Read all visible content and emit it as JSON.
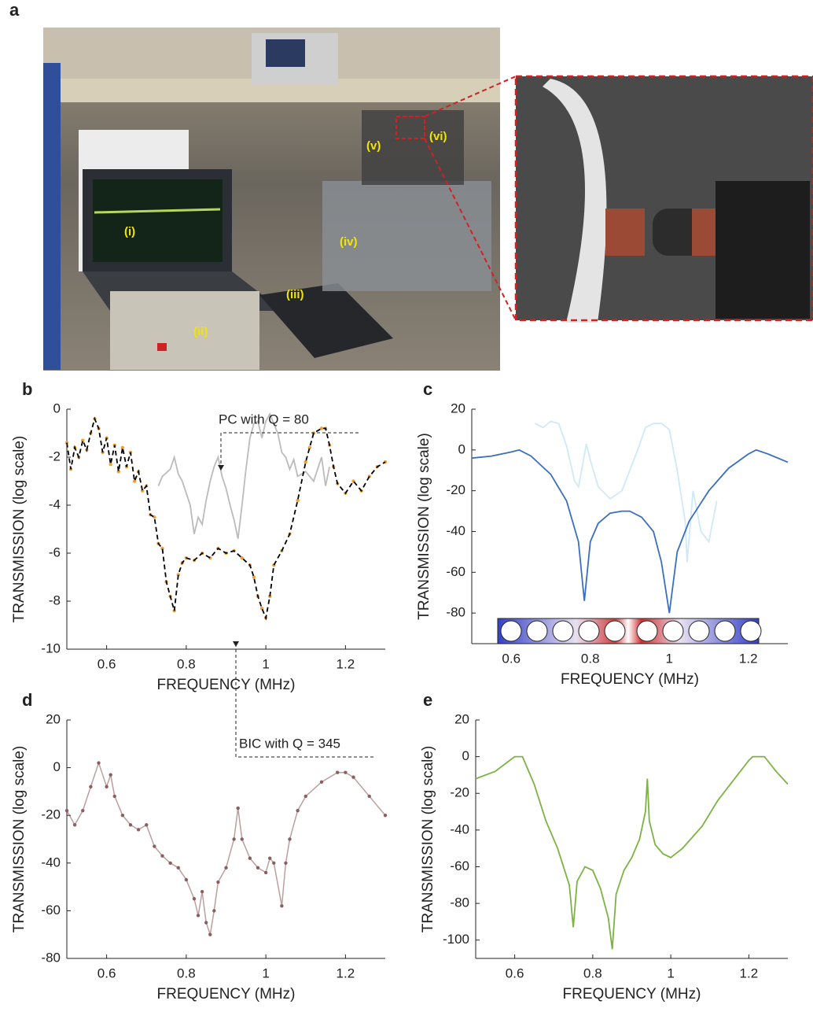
{
  "figure": {
    "panel_labels": [
      "a",
      "b",
      "c",
      "d",
      "e"
    ],
    "photo_labels": [
      "(i)",
      "(ii)",
      "(iii)",
      "(iv)",
      "(v)",
      "(vi)"
    ]
  },
  "chart_data": [
    {
      "type": "line",
      "xlabel": "FREQUENCY (MHz)",
      "ylabel": "TRANSMISSION (log scale)",
      "annotation": "PC with Q = 80",
      "xlim": [
        0.5,
        1.3
      ],
      "xticks": [
        0.6,
        0.8,
        1,
        1.2
      ],
      "ylim": [
        -10,
        0
      ],
      "yticks": [
        -10,
        -8,
        -6,
        -4,
        -2,
        0
      ],
      "series": [
        {
          "color": "#bbbbbb",
          "x": [
            0.73,
            0.74,
            0.76,
            0.77,
            0.78,
            0.79,
            0.8,
            0.81,
            0.82,
            0.83,
            0.84,
            0.85,
            0.86,
            0.87,
            0.88,
            0.89,
            0.9,
            0.91,
            0.92,
            0.93,
            0.94,
            0.95,
            0.96,
            0.97,
            0.98,
            0.99,
            1.0,
            1.01,
            1.03,
            1.04,
            1.05,
            1.06,
            1.07,
            1.08,
            1.1,
            1.12,
            1.14,
            1.15,
            1.16
          ],
          "values": [
            -3.2,
            -2.8,
            -2.5,
            -2.0,
            -2.7,
            -3.0,
            -3.5,
            -4.0,
            -5.2,
            -4.5,
            -4.8,
            -3.8,
            -3.0,
            -2.4,
            -2.0,
            -2.8,
            -3.3,
            -4.0,
            -4.6,
            -5.4,
            -4.0,
            -2.5,
            -1.2,
            -0.6,
            -0.5,
            -1.2,
            -0.5,
            -0.2,
            -1.0,
            -1.8,
            -2.0,
            -2.5,
            -2.1,
            -2.8,
            -2.6,
            -3.0,
            -2.0,
            -3.2,
            -2.4
          ]
        },
        {
          "color": "#f0a030",
          "line_color": "#000000",
          "dashed": true,
          "markers": true,
          "x": [
            0.5,
            0.51,
            0.52,
            0.53,
            0.54,
            0.55,
            0.56,
            0.57,
            0.58,
            0.59,
            0.6,
            0.61,
            0.62,
            0.63,
            0.64,
            0.65,
            0.66,
            0.67,
            0.68,
            0.69,
            0.7,
            0.71,
            0.72,
            0.73,
            0.74,
            0.75,
            0.76,
            0.77,
            0.78,
            0.79,
            0.8,
            0.82,
            0.84,
            0.86,
            0.88,
            0.9,
            0.92,
            0.94,
            0.96,
            0.97,
            0.98,
            0.99,
            1.0,
            1.01,
            1.02,
            1.04,
            1.06,
            1.08,
            1.1,
            1.11,
            1.12,
            1.14,
            1.15,
            1.16,
            1.17,
            1.18,
            1.2,
            1.22,
            1.24,
            1.26,
            1.28,
            1.3
          ],
          "values": [
            -1.4,
            -2.5,
            -1.6,
            -2.0,
            -1.3,
            -1.7,
            -1.0,
            -0.4,
            -0.8,
            -1.8,
            -1.2,
            -2.3,
            -1.5,
            -2.6,
            -1.6,
            -2.4,
            -1.8,
            -3.0,
            -2.6,
            -3.4,
            -3.2,
            -4.4,
            -4.5,
            -5.6,
            -5.8,
            -7.2,
            -7.8,
            -8.4,
            -6.9,
            -6.4,
            -6.2,
            -6.3,
            -6.0,
            -6.2,
            -5.8,
            -6.0,
            -5.9,
            -6.2,
            -6.5,
            -7.0,
            -7.8,
            -8.3,
            -8.7,
            -7.8,
            -6.5,
            -5.9,
            -5.2,
            -3.8,
            -2.2,
            -1.6,
            -1.0,
            -0.8,
            -0.8,
            -1.5,
            -2.4,
            -3.1,
            -3.5,
            -3.0,
            -3.4,
            -2.8,
            -2.4,
            -2.2
          ]
        }
      ]
    },
    {
      "type": "line",
      "xlabel": "FREQUENCY (MHz)",
      "ylabel": "TRANSMISSION (log scale)",
      "xlim": [
        0.5,
        1.3
      ],
      "xticks": [
        0.6,
        0.8,
        1,
        1.2
      ],
      "ylim": [
        -95,
        20
      ],
      "yticks": [
        -80,
        -60,
        -40,
        -20,
        0,
        20
      ],
      "series": [
        {
          "color": "#cfe9f7",
          "x": [
            0.66,
            0.68,
            0.7,
            0.72,
            0.74,
            0.76,
            0.77,
            0.78,
            0.79,
            0.8,
            0.82,
            0.85,
            0.88,
            0.9,
            0.92,
            0.94,
            0.96,
            0.98,
            1.0,
            1.02,
            1.04,
            1.045,
            1.06,
            1.08,
            1.1,
            1.12
          ],
          "values": [
            13,
            11,
            14,
            13,
            2,
            -15,
            -18,
            -8,
            3,
            -5,
            -18,
            -24,
            -20,
            -10,
            0,
            11,
            13,
            13,
            10,
            -10,
            -35,
            -55,
            -20,
            -40,
            -45,
            -25
          ]
        },
        {
          "color": "#3a6fbf",
          "x": [
            0.5,
            0.55,
            0.6,
            0.62,
            0.65,
            0.7,
            0.74,
            0.77,
            0.785,
            0.8,
            0.82,
            0.85,
            0.88,
            0.9,
            0.93,
            0.96,
            0.98,
            1.0,
            1.02,
            1.05,
            1.1,
            1.15,
            1.2,
            1.22,
            1.25,
            1.3
          ],
          "values": [
            -4,
            -3,
            -1,
            0,
            -3,
            -12,
            -25,
            -45,
            -74,
            -45,
            -36,
            -31,
            -30,
            -30,
            -33,
            -40,
            -55,
            -80,
            -50,
            -35,
            -20,
            -9,
            -2,
            0,
            -2,
            -6
          ]
        }
      ]
    },
    {
      "type": "line",
      "xlabel": "FREQUENCY (MHz)",
      "ylabel": "TRANSMISSION (log scale)",
      "annotation": "BIC with Q = 345",
      "xlim": [
        0.5,
        1.3
      ],
      "xticks": [
        0.6,
        0.8,
        1,
        1.2
      ],
      "ylim": [
        -80,
        20
      ],
      "yticks": [
        -80,
        -60,
        -40,
        -20,
        0,
        20
      ],
      "series": [
        {
          "color": "#8c5f5f",
          "markers": true,
          "x": [
            0.5,
            0.52,
            0.54,
            0.56,
            0.58,
            0.6,
            0.61,
            0.62,
            0.64,
            0.66,
            0.68,
            0.7,
            0.72,
            0.74,
            0.76,
            0.78,
            0.8,
            0.82,
            0.83,
            0.84,
            0.85,
            0.86,
            0.87,
            0.88,
            0.9,
            0.92,
            0.93,
            0.94,
            0.96,
            0.98,
            1.0,
            1.01,
            1.02,
            1.04,
            1.05,
            1.06,
            1.08,
            1.1,
            1.14,
            1.18,
            1.2,
            1.22,
            1.26,
            1.3
          ],
          "values": [
            -18,
            -24,
            -18,
            -8,
            2,
            -8,
            -3,
            -12,
            -20,
            -24,
            -26,
            -24,
            -33,
            -37,
            -40,
            -42,
            -47,
            -55,
            -62,
            -52,
            -65,
            -70,
            -60,
            -48,
            -42,
            -30,
            -17,
            -30,
            -38,
            -42,
            -44,
            -38,
            -40,
            -58,
            -40,
            -30,
            -18,
            -12,
            -6,
            -2,
            -2,
            -4,
            -12,
            -20
          ]
        }
      ]
    },
    {
      "type": "line",
      "xlabel": "FREQUENCY (MHz)",
      "ylabel": "TRANSMISSION (log scale)",
      "xlim": [
        0.5,
        1.3
      ],
      "xticks": [
        0.6,
        0.8,
        1,
        1.2
      ],
      "ylim": [
        -110,
        20
      ],
      "yticks": [
        -100,
        -80,
        -60,
        -40,
        -20,
        0,
        20
      ],
      "series": [
        {
          "color": "#7cb342",
          "x": [
            0.5,
            0.55,
            0.6,
            0.62,
            0.65,
            0.68,
            0.71,
            0.74,
            0.75,
            0.76,
            0.78,
            0.8,
            0.82,
            0.84,
            0.85,
            0.86,
            0.88,
            0.9,
            0.92,
            0.935,
            0.94,
            0.945,
            0.96,
            0.98,
            1.0,
            1.03,
            1.08,
            1.12,
            1.16,
            1.2,
            1.21,
            1.24,
            1.27,
            1.3
          ],
          "values": [
            -12,
            -8,
            0,
            0,
            -15,
            -35,
            -50,
            -70,
            -93,
            -68,
            -60,
            -62,
            -72,
            -88,
            -105,
            -75,
            -62,
            -55,
            -45,
            -30,
            -12,
            -35,
            -48,
            -53,
            -55,
            -50,
            -38,
            -24,
            -13,
            -2,
            0,
            0,
            -8,
            -15
          ]
        }
      ]
    }
  ]
}
